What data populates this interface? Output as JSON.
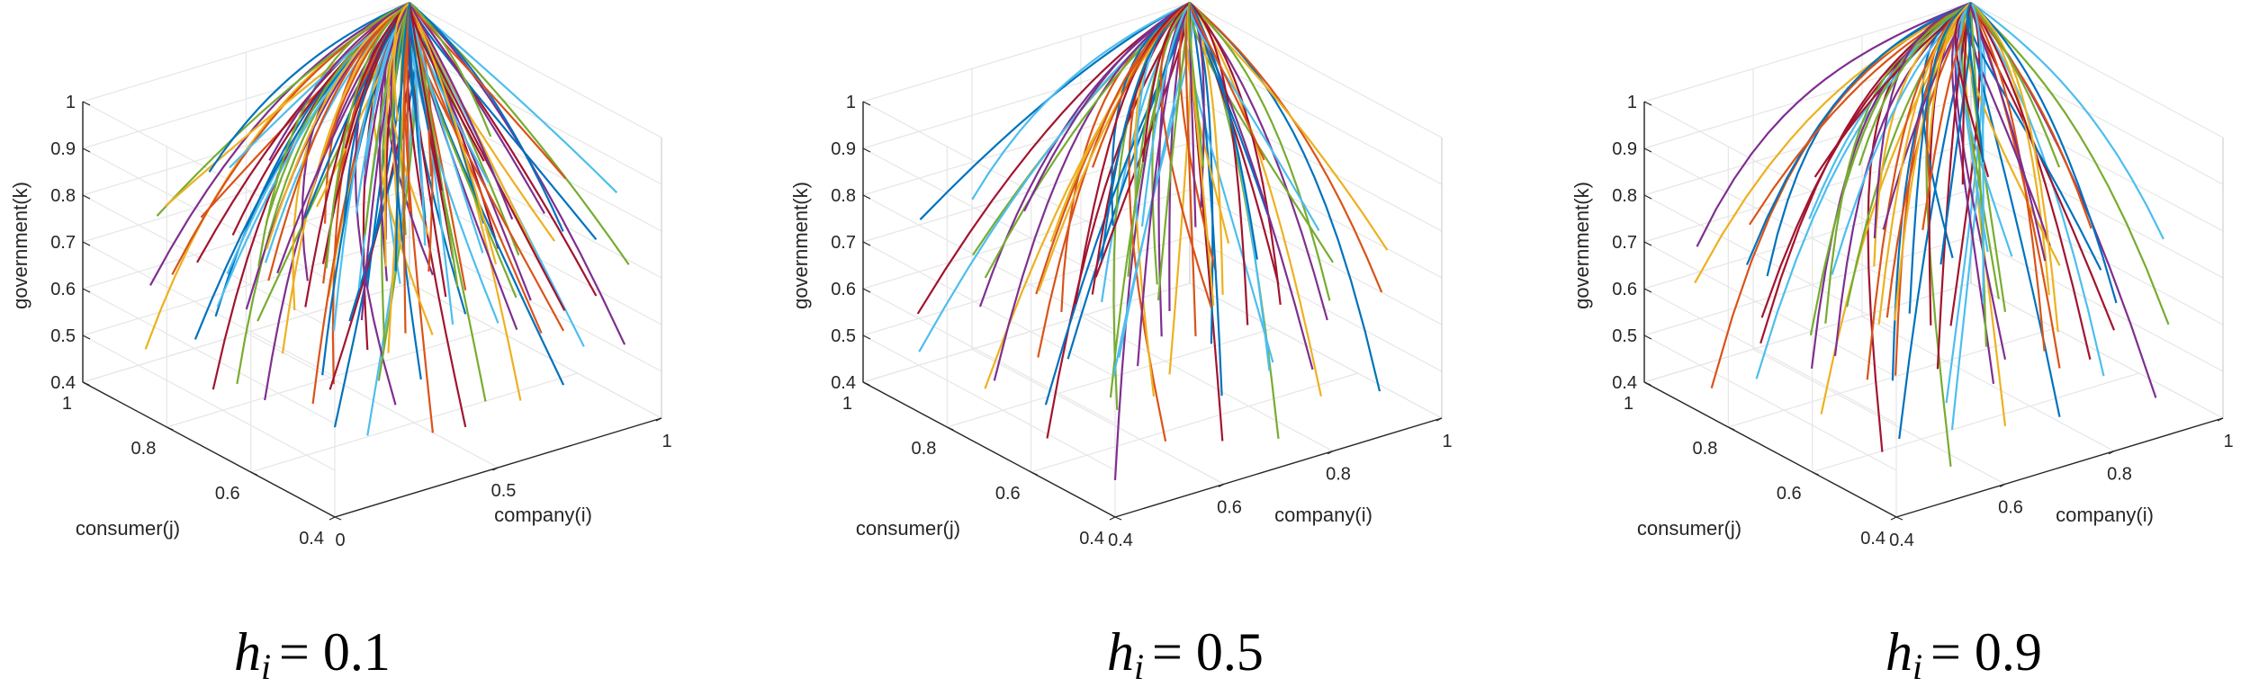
{
  "figure": {
    "line_colors": [
      "#0072BD",
      "#D95319",
      "#EDB120",
      "#7E2F8E",
      "#77AC30",
      "#4DBEEE",
      "#A2142F"
    ],
    "axis_color": "#262626",
    "grid_color": "#e6e6e6"
  },
  "chart_data": [
    {
      "type": "line",
      "projection": "3d",
      "caption": {
        "var": "h",
        "sub": "i",
        "eq": "= 0.1"
      },
      "param_h": 0.1,
      "xlabel": "company(i)",
      "ylabel": "consumer(j)",
      "zlabel": "government(k)",
      "xlim": [
        0,
        1
      ],
      "ylim": [
        0.4,
        1
      ],
      "zlim": [
        0.4,
        1
      ],
      "xticks": [
        "0",
        "0.5",
        "1"
      ],
      "yticks": [
        "0.4",
        "0.6",
        "0.8",
        "1"
      ],
      "zticks": [
        "0.4",
        "0.5",
        "0.6",
        "0.7",
        "0.8",
        "0.9",
        "1"
      ],
      "grid": true,
      "trajectories": "evolution paths from initial points (i0, j0, k0) converging to (1, 1, 1)",
      "i0_values": [
        0.0,
        0.1,
        0.2,
        0.3,
        0.4,
        0.5,
        0.6,
        0.7,
        0.8,
        0.9
      ],
      "j0_values": [
        0.4,
        0.55,
        0.7,
        0.85
      ],
      "k0_values": [
        0.55,
        0.7,
        0.85
      ],
      "endpoint": [
        1,
        1,
        1
      ]
    },
    {
      "type": "line",
      "projection": "3d",
      "caption": {
        "var": "h",
        "sub": "i",
        "eq": "= 0.5"
      },
      "param_h": 0.5,
      "xlabel": "company(i)",
      "ylabel": "consumer(j)",
      "zlabel": "government(k)",
      "xlim": [
        0.4,
        1
      ],
      "ylim": [
        0.4,
        1
      ],
      "zlim": [
        0.4,
        1
      ],
      "xticks": [
        "0.4",
        "0.6",
        "0.8",
        "1"
      ],
      "yticks": [
        "0.4",
        "0.6",
        "0.8",
        "1"
      ],
      "zticks": [
        "0.4",
        "0.5",
        "0.6",
        "0.7",
        "0.8",
        "0.9",
        "1"
      ],
      "grid": true,
      "trajectories": "evolution paths from initial points (i0, j0, k0) converging to (1, 1, 1)",
      "i0_values": [
        0.4,
        0.5,
        0.6,
        0.7,
        0.8,
        0.9
      ],
      "j0_values": [
        0.4,
        0.55,
        0.7,
        0.85
      ],
      "k0_values": [
        0.5,
        0.65,
        0.8
      ],
      "endpoint": [
        1,
        1,
        1
      ]
    },
    {
      "type": "line",
      "projection": "3d",
      "caption": {
        "var": "h",
        "sub": "i",
        "eq": "= 0.9"
      },
      "param_h": 0.9,
      "xlabel": "company(i)",
      "ylabel": "consumer(j)",
      "zlabel": "government(k)",
      "xlim": [
        0.4,
        1
      ],
      "ylim": [
        0.4,
        1
      ],
      "zlim": [
        0.4,
        1
      ],
      "xticks": [
        "0.4",
        "0.6",
        "0.8",
        "1"
      ],
      "yticks": [
        "0.4",
        "0.6",
        "0.8",
        "1"
      ],
      "zticks": [
        "0.4",
        "0.5",
        "0.6",
        "0.7",
        "0.8",
        "0.9",
        "1"
      ],
      "grid": true,
      "trajectories": "evolution paths from initial points (i0, j0, k0) converging to (1, 1, 1)",
      "i0_values": [
        0.4,
        0.5,
        0.6,
        0.7,
        0.8,
        0.9
      ],
      "j0_values": [
        0.4,
        0.55,
        0.7,
        0.85
      ],
      "k0_values": [
        0.5,
        0.65,
        0.8
      ],
      "endpoint": [
        1,
        1,
        1
      ]
    }
  ]
}
